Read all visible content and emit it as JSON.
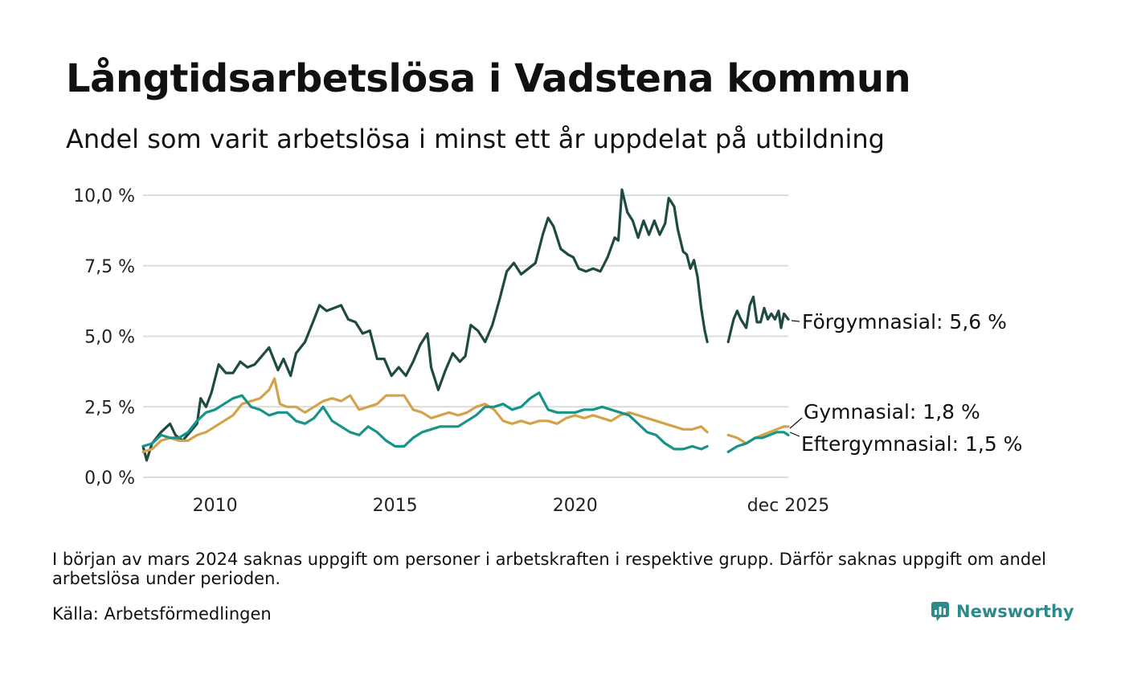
{
  "title": "Långtidsarbetslösa i Vadstena kommun",
  "subtitle": "Andel som varit arbetslösa i minst ett år uppdelat på utbildning",
  "footnote": "I början av mars 2024 saknas uppgift om personer i arbetskraften i respektive grupp. Därför saknas uppgift om andel arbetslösa under perioden.",
  "source": "Källa: Arbetsförmedlingen",
  "brand": "Newsworthy",
  "colors": {
    "forgymnasial": "#1f4a42",
    "gymnasial": "#d4a24a",
    "eftergymnasial": "#179488",
    "grid": "#dcdcdc",
    "brand": "#2d8a8a"
  },
  "chart_data": {
    "type": "line",
    "title": "Långtidsarbetslösa i Vadstena kommun",
    "ylabel": "",
    "xlabel": "",
    "ylim": [
      0,
      10
    ],
    "yticks": [
      {
        "value": 0,
        "label": "0,0 %"
      },
      {
        "value": 2.5,
        "label": "2,5 %"
      },
      {
        "value": 5,
        "label": "5,0 %"
      },
      {
        "value": 7.5,
        "label": "7,5 %"
      },
      {
        "value": 10,
        "label": "10,0 %"
      }
    ],
    "xlim": [
      2008.0,
      2025.92
    ],
    "xticks": [
      {
        "value": 2010,
        "label": "2010"
      },
      {
        "value": 2015,
        "label": "2015"
      },
      {
        "value": 2020,
        "label": "2020"
      },
      {
        "value": 2025.92,
        "label": "dec 2025"
      }
    ],
    "gap": [
      2023.67,
      2024.25
    ],
    "series": [
      {
        "key": "forgymnasial",
        "name": "Förgymnasial",
        "end_label": "Förgymnasial: 5,6 %",
        "points": [
          [
            2008.0,
            1.1
          ],
          [
            2008.1,
            0.6
          ],
          [
            2008.25,
            1.2
          ],
          [
            2008.5,
            1.6
          ],
          [
            2008.75,
            1.9
          ],
          [
            2008.9,
            1.5
          ],
          [
            2009.1,
            1.3
          ],
          [
            2009.3,
            1.6
          ],
          [
            2009.5,
            1.9
          ],
          [
            2009.6,
            2.8
          ],
          [
            2009.75,
            2.5
          ],
          [
            2009.9,
            3.0
          ],
          [
            2010.1,
            4.0
          ],
          [
            2010.3,
            3.7
          ],
          [
            2010.5,
            3.7
          ],
          [
            2010.7,
            4.1
          ],
          [
            2010.9,
            3.9
          ],
          [
            2011.1,
            4.0
          ],
          [
            2011.3,
            4.3
          ],
          [
            2011.5,
            4.6
          ],
          [
            2011.75,
            3.8
          ],
          [
            2011.9,
            4.2
          ],
          [
            2012.1,
            3.6
          ],
          [
            2012.25,
            4.4
          ],
          [
            2012.5,
            4.8
          ],
          [
            2012.75,
            5.6
          ],
          [
            2012.9,
            6.1
          ],
          [
            2013.1,
            5.9
          ],
          [
            2013.3,
            6.0
          ],
          [
            2013.5,
            6.1
          ],
          [
            2013.7,
            5.6
          ],
          [
            2013.9,
            5.5
          ],
          [
            2014.1,
            5.1
          ],
          [
            2014.3,
            5.2
          ],
          [
            2014.5,
            4.2
          ],
          [
            2014.7,
            4.2
          ],
          [
            2014.9,
            3.6
          ],
          [
            2015.1,
            3.9
          ],
          [
            2015.3,
            3.6
          ],
          [
            2015.5,
            4.1
          ],
          [
            2015.7,
            4.7
          ],
          [
            2015.9,
            5.1
          ],
          [
            2016.0,
            3.9
          ],
          [
            2016.2,
            3.1
          ],
          [
            2016.4,
            3.8
          ],
          [
            2016.6,
            4.4
          ],
          [
            2016.8,
            4.1
          ],
          [
            2016.95,
            4.3
          ],
          [
            2017.1,
            5.4
          ],
          [
            2017.3,
            5.2
          ],
          [
            2017.5,
            4.8
          ],
          [
            2017.7,
            5.4
          ],
          [
            2017.9,
            6.3
          ],
          [
            2018.1,
            7.3
          ],
          [
            2018.3,
            7.6
          ],
          [
            2018.5,
            7.2
          ],
          [
            2018.7,
            7.4
          ],
          [
            2018.9,
            7.6
          ],
          [
            2019.1,
            8.6
          ],
          [
            2019.25,
            9.2
          ],
          [
            2019.4,
            8.9
          ],
          [
            2019.6,
            8.1
          ],
          [
            2019.8,
            7.9
          ],
          [
            2019.95,
            7.8
          ],
          [
            2020.1,
            7.4
          ],
          [
            2020.3,
            7.3
          ],
          [
            2020.5,
            7.4
          ],
          [
            2020.7,
            7.3
          ],
          [
            2020.9,
            7.8
          ],
          [
            2021.1,
            8.5
          ],
          [
            2021.2,
            8.4
          ],
          [
            2021.3,
            10.2
          ],
          [
            2021.45,
            9.4
          ],
          [
            2021.6,
            9.1
          ],
          [
            2021.75,
            8.5
          ],
          [
            2021.9,
            9.1
          ],
          [
            2022.05,
            8.6
          ],
          [
            2022.2,
            9.1
          ],
          [
            2022.35,
            8.6
          ],
          [
            2022.5,
            9.0
          ],
          [
            2022.6,
            9.9
          ],
          [
            2022.75,
            9.6
          ],
          [
            2022.85,
            8.8
          ],
          [
            2023.0,
            8.0
          ],
          [
            2023.1,
            7.9
          ],
          [
            2023.2,
            7.4
          ],
          [
            2023.3,
            7.7
          ],
          [
            2023.4,
            7.1
          ],
          [
            2023.5,
            6.0
          ],
          [
            2023.6,
            5.2
          ],
          [
            2023.67,
            4.8
          ]
        ],
        "points_after_gap": [
          [
            2024.25,
            4.8
          ],
          [
            2024.4,
            5.6
          ],
          [
            2024.5,
            5.9
          ],
          [
            2024.6,
            5.6
          ],
          [
            2024.75,
            5.3
          ],
          [
            2024.85,
            6.1
          ],
          [
            2024.95,
            6.4
          ],
          [
            2025.05,
            5.5
          ],
          [
            2025.15,
            5.5
          ],
          [
            2025.25,
            6.0
          ],
          [
            2025.35,
            5.6
          ],
          [
            2025.45,
            5.8
          ],
          [
            2025.55,
            5.6
          ],
          [
            2025.65,
            5.9
          ],
          [
            2025.72,
            5.3
          ],
          [
            2025.8,
            5.8
          ],
          [
            2025.92,
            5.6
          ]
        ]
      },
      {
        "key": "gymnasial",
        "name": "Gymnasial",
        "end_label": "Gymnasial: 1,8 %",
        "points": [
          [
            2008.0,
            0.9
          ],
          [
            2008.25,
            1.0
          ],
          [
            2008.5,
            1.3
          ],
          [
            2008.75,
            1.4
          ],
          [
            2009.0,
            1.3
          ],
          [
            2009.25,
            1.3
          ],
          [
            2009.5,
            1.5
          ],
          [
            2009.75,
            1.6
          ],
          [
            2010.0,
            1.8
          ],
          [
            2010.25,
            2.0
          ],
          [
            2010.5,
            2.2
          ],
          [
            2010.75,
            2.6
          ],
          [
            2011.0,
            2.7
          ],
          [
            2011.25,
            2.8
          ],
          [
            2011.5,
            3.1
          ],
          [
            2011.65,
            3.5
          ],
          [
            2011.8,
            2.6
          ],
          [
            2012.0,
            2.5
          ],
          [
            2012.25,
            2.5
          ],
          [
            2012.5,
            2.3
          ],
          [
            2012.75,
            2.5
          ],
          [
            2013.0,
            2.7
          ],
          [
            2013.25,
            2.8
          ],
          [
            2013.5,
            2.7
          ],
          [
            2013.75,
            2.9
          ],
          [
            2014.0,
            2.4
          ],
          [
            2014.25,
            2.5
          ],
          [
            2014.5,
            2.6
          ],
          [
            2014.75,
            2.9
          ],
          [
            2015.0,
            2.9
          ],
          [
            2015.25,
            2.9
          ],
          [
            2015.5,
            2.4
          ],
          [
            2015.75,
            2.3
          ],
          [
            2016.0,
            2.1
          ],
          [
            2016.25,
            2.2
          ],
          [
            2016.5,
            2.3
          ],
          [
            2016.75,
            2.2
          ],
          [
            2017.0,
            2.3
          ],
          [
            2017.25,
            2.5
          ],
          [
            2017.5,
            2.6
          ],
          [
            2017.75,
            2.4
          ],
          [
            2018.0,
            2.0
          ],
          [
            2018.25,
            1.9
          ],
          [
            2018.5,
            2.0
          ],
          [
            2018.75,
            1.9
          ],
          [
            2019.0,
            2.0
          ],
          [
            2019.25,
            2.0
          ],
          [
            2019.5,
            1.9
          ],
          [
            2019.75,
            2.1
          ],
          [
            2020.0,
            2.2
          ],
          [
            2020.25,
            2.1
          ],
          [
            2020.5,
            2.2
          ],
          [
            2020.75,
            2.1
          ],
          [
            2021.0,
            2.0
          ],
          [
            2021.25,
            2.2
          ],
          [
            2021.5,
            2.3
          ],
          [
            2021.75,
            2.2
          ],
          [
            2022.0,
            2.1
          ],
          [
            2022.25,
            2.0
          ],
          [
            2022.5,
            1.9
          ],
          [
            2022.75,
            1.8
          ],
          [
            2023.0,
            1.7
          ],
          [
            2023.25,
            1.7
          ],
          [
            2023.5,
            1.8
          ],
          [
            2023.67,
            1.6
          ]
        ],
        "points_after_gap": [
          [
            2024.25,
            1.5
          ],
          [
            2024.5,
            1.4
          ],
          [
            2024.75,
            1.2
          ],
          [
            2025.0,
            1.4
          ],
          [
            2025.2,
            1.5
          ],
          [
            2025.4,
            1.6
          ],
          [
            2025.6,
            1.7
          ],
          [
            2025.8,
            1.8
          ],
          [
            2025.92,
            1.8
          ]
        ]
      },
      {
        "key": "eftergymnasial",
        "name": "Eftergymnasial",
        "end_label": "Eftergymnasial: 1,5 %",
        "points": [
          [
            2008.0,
            1.1
          ],
          [
            2008.25,
            1.2
          ],
          [
            2008.5,
            1.5
          ],
          [
            2008.75,
            1.4
          ],
          [
            2009.0,
            1.4
          ],
          [
            2009.25,
            1.6
          ],
          [
            2009.5,
            2.0
          ],
          [
            2009.75,
            2.3
          ],
          [
            2010.0,
            2.4
          ],
          [
            2010.25,
            2.6
          ],
          [
            2010.5,
            2.8
          ],
          [
            2010.75,
            2.9
          ],
          [
            2011.0,
            2.5
          ],
          [
            2011.25,
            2.4
          ],
          [
            2011.5,
            2.2
          ],
          [
            2011.75,
            2.3
          ],
          [
            2012.0,
            2.3
          ],
          [
            2012.25,
            2.0
          ],
          [
            2012.5,
            1.9
          ],
          [
            2012.75,
            2.1
          ],
          [
            2013.0,
            2.5
          ],
          [
            2013.25,
            2.0
          ],
          [
            2013.5,
            1.8
          ],
          [
            2013.75,
            1.6
          ],
          [
            2014.0,
            1.5
          ],
          [
            2014.25,
            1.8
          ],
          [
            2014.5,
            1.6
          ],
          [
            2014.75,
            1.3
          ],
          [
            2015.0,
            1.1
          ],
          [
            2015.25,
            1.1
          ],
          [
            2015.5,
            1.4
          ],
          [
            2015.75,
            1.6
          ],
          [
            2016.0,
            1.7
          ],
          [
            2016.25,
            1.8
          ],
          [
            2016.5,
            1.8
          ],
          [
            2016.75,
            1.8
          ],
          [
            2017.0,
            2.0
          ],
          [
            2017.25,
            2.2
          ],
          [
            2017.5,
            2.5
          ],
          [
            2017.75,
            2.5
          ],
          [
            2018.0,
            2.6
          ],
          [
            2018.25,
            2.4
          ],
          [
            2018.5,
            2.5
          ],
          [
            2018.75,
            2.8
          ],
          [
            2019.0,
            3.0
          ],
          [
            2019.25,
            2.4
          ],
          [
            2019.5,
            2.3
          ],
          [
            2019.75,
            2.3
          ],
          [
            2020.0,
            2.3
          ],
          [
            2020.25,
            2.4
          ],
          [
            2020.5,
            2.4
          ],
          [
            2020.75,
            2.5
          ],
          [
            2021.0,
            2.4
          ],
          [
            2021.25,
            2.3
          ],
          [
            2021.5,
            2.2
          ],
          [
            2021.75,
            1.9
          ],
          [
            2022.0,
            1.6
          ],
          [
            2022.25,
            1.5
          ],
          [
            2022.5,
            1.2
          ],
          [
            2022.75,
            1.0
          ],
          [
            2023.0,
            1.0
          ],
          [
            2023.25,
            1.1
          ],
          [
            2023.5,
            1.0
          ],
          [
            2023.67,
            1.1
          ]
        ],
        "points_after_gap": [
          [
            2024.25,
            0.9
          ],
          [
            2024.5,
            1.1
          ],
          [
            2024.75,
            1.2
          ],
          [
            2025.0,
            1.4
          ],
          [
            2025.2,
            1.4
          ],
          [
            2025.4,
            1.5
          ],
          [
            2025.6,
            1.6
          ],
          [
            2025.8,
            1.6
          ],
          [
            2025.92,
            1.5
          ]
        ]
      }
    ]
  }
}
